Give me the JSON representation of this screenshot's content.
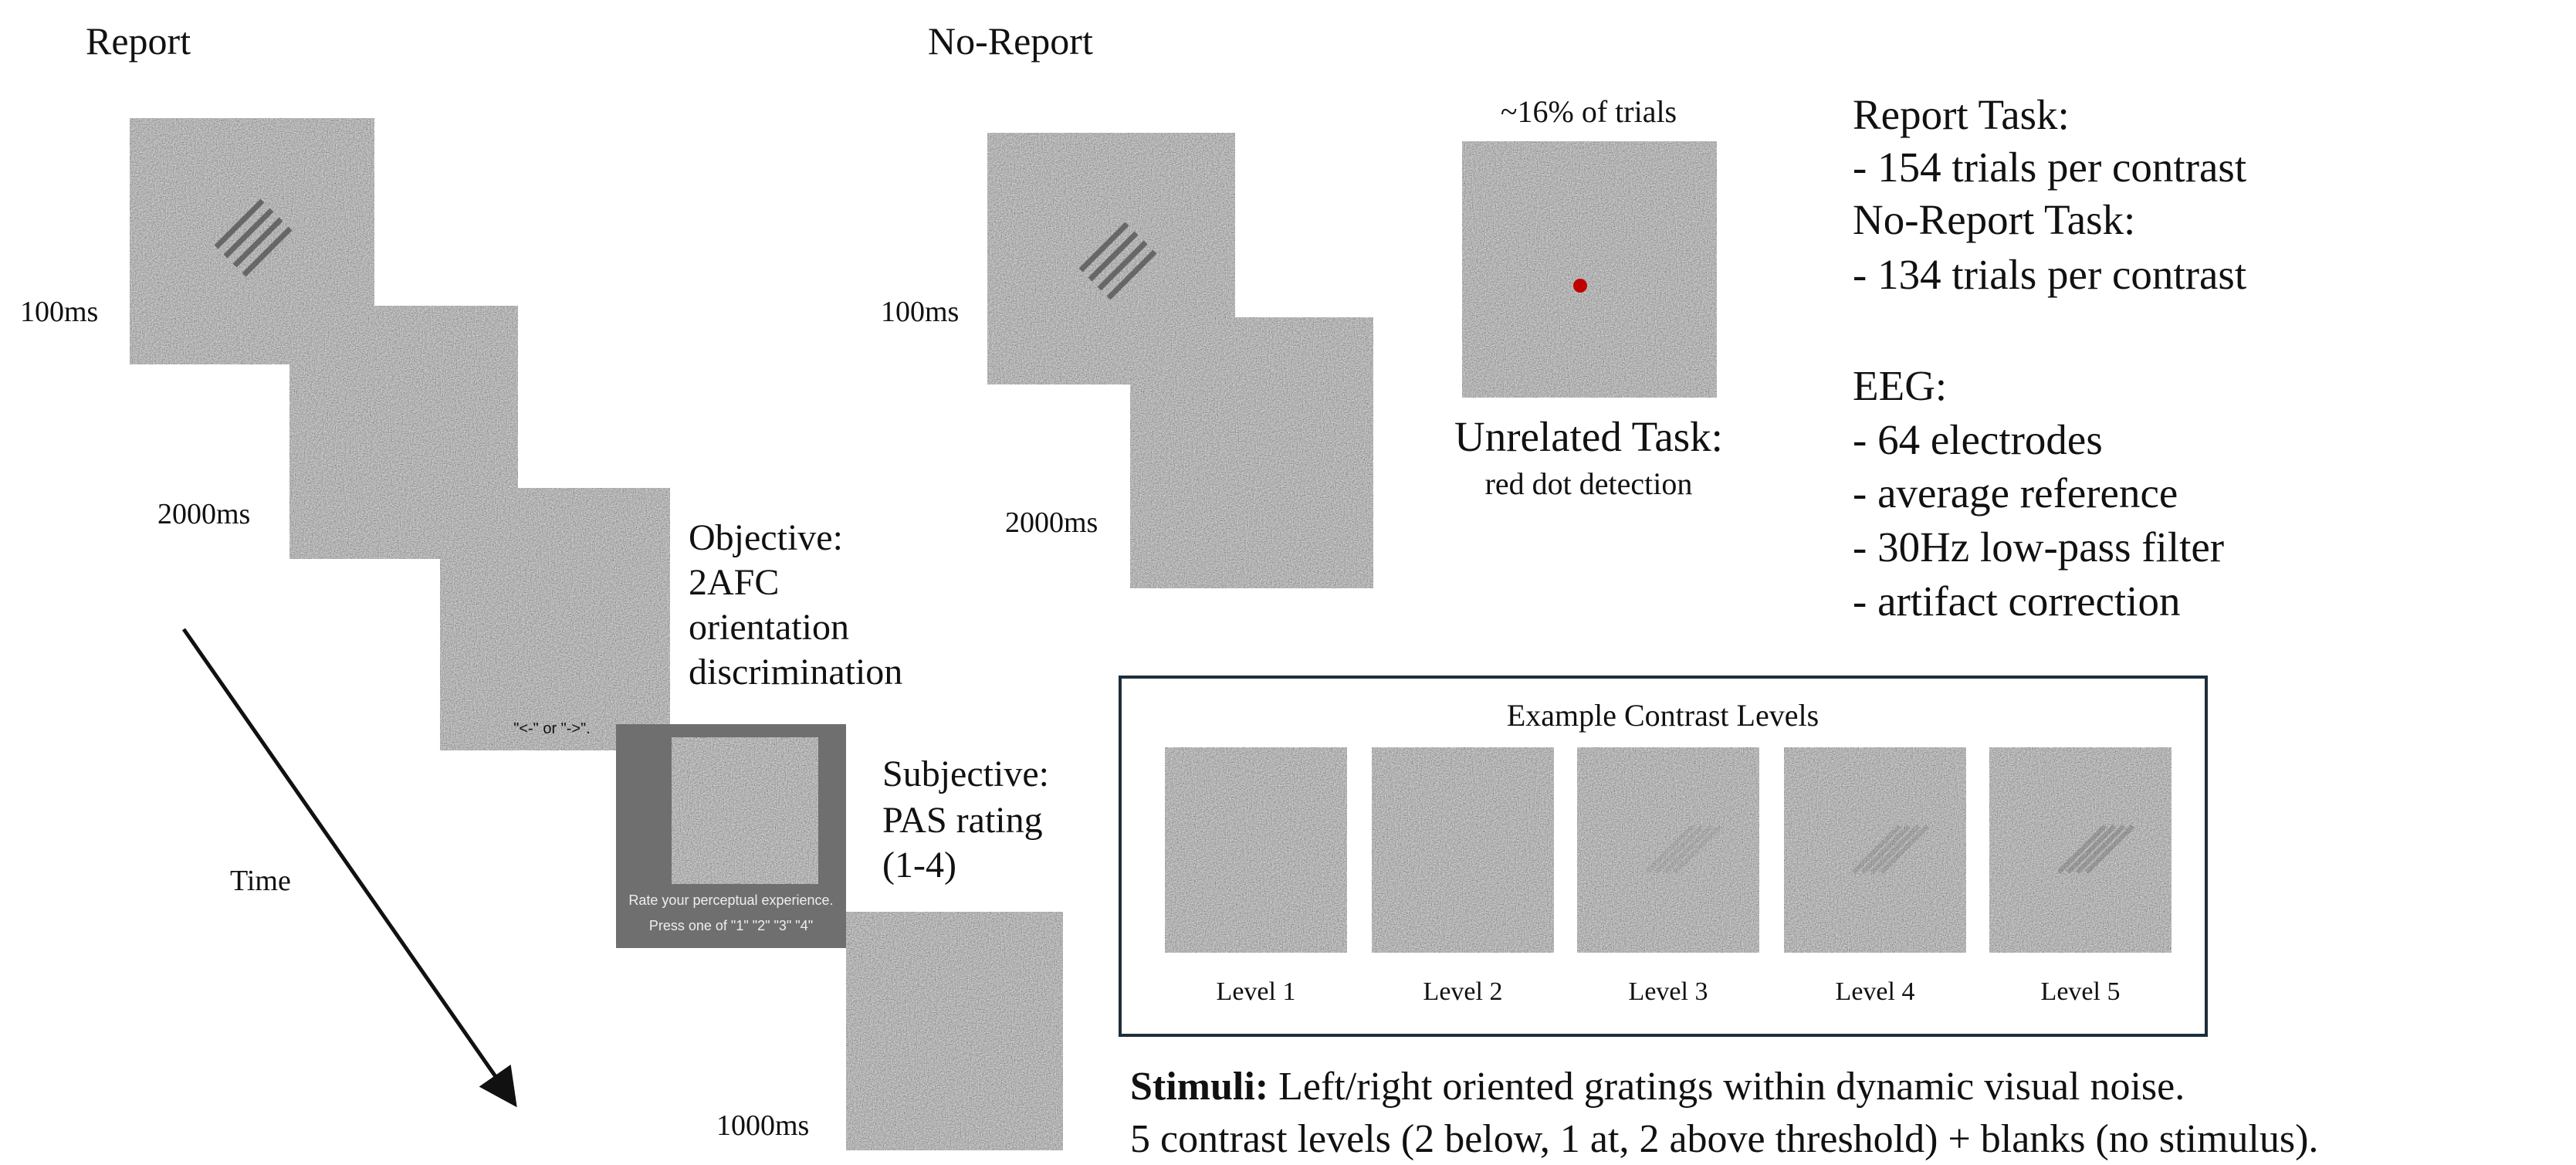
{
  "report": {
    "title": "Report",
    "durations": [
      "100ms",
      "2000ms",
      "1000ms"
    ],
    "objective": [
      "Objective:",
      "2AFC",
      "orientation",
      "discrimination"
    ],
    "subjective": [
      "Subjective:",
      "PAS rating",
      "(1-4)"
    ],
    "prompt_orientation": "\"<-\" or \"->\".",
    "prompt_pas": [
      "Rate your perceptual experience.",
      "Press one of  \"1\"  \"2\"  \"3\"  \"4\""
    ],
    "time": "Time"
  },
  "no_report": {
    "title": "No-Report",
    "durations": [
      "100ms",
      "2000ms"
    ],
    "catch_note": "~16% of trials",
    "unrelated_task": "Unrelated Task:",
    "unrelated_detail": "red dot detection"
  },
  "info": [
    "Report Task:",
    "- 154 trials per contrast",
    "No-Report Task:",
    "- 134 trials per contrast",
    "EEG:",
    "- 64 electrodes",
    "- average reference",
    "- 30Hz low-pass filter",
    "- artifact correction"
  ],
  "contrast": {
    "title": "Example Contrast Levels",
    "levels": [
      "Level 1",
      "Level 2",
      "Level 3",
      "Level 4",
      "Level 5"
    ]
  },
  "stimuli": {
    "label": "Stimuli:",
    "text": " Left/right oriented gratings within dynamic visual noise.",
    "line2": "5 contrast levels (2 below, 1 at, 2 above threshold) + blanks (no stimulus)."
  }
}
